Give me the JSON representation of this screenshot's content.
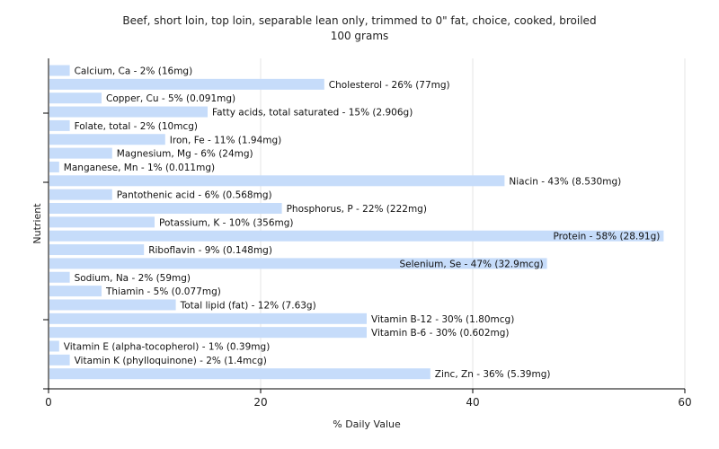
{
  "chart_data": {
    "type": "bar",
    "orientation": "horizontal",
    "title": "Beef, short loin, top loin, separable lean only, trimmed to 0\" fat, choice, cooked, broiled",
    "subtitle": "100 grams",
    "xlabel": "% Daily Value",
    "ylabel": "Nutrient",
    "xlim": [
      0,
      60
    ],
    "xticks": [
      0,
      20,
      40,
      60
    ],
    "grid": true,
    "bar_color": "#c6dcfa",
    "categories": [
      "Calcium, Ca",
      "Cholesterol",
      "Copper, Cu",
      "Fatty acids, total saturated",
      "Folate, total",
      "Iron, Fe",
      "Magnesium, Mg",
      "Manganese, Mn",
      "Niacin",
      "Pantothenic acid",
      "Phosphorus, P",
      "Potassium, K",
      "Protein",
      "Riboflavin",
      "Selenium, Se",
      "Sodium, Na",
      "Thiamin",
      "Total lipid (fat)",
      "Vitamin B-12",
      "Vitamin B-6",
      "Vitamin E (alpha-tocopherol)",
      "Vitamin K (phylloquinone)",
      "Zinc, Zn"
    ],
    "values": [
      2,
      26,
      5,
      15,
      2,
      11,
      6,
      1,
      43,
      6,
      22,
      10,
      58,
      9,
      47,
      2,
      5,
      12,
      30,
      30,
      1,
      2,
      36
    ],
    "labels": [
      "Calcium, Ca - 2% (16mg)",
      "Cholesterol - 26% (77mg)",
      "Copper, Cu - 5% (0.091mg)",
      "Fatty acids, total saturated - 15% (2.906g)",
      "Folate, total - 2% (10mcg)",
      "Iron, Fe - 11% (1.94mg)",
      "Magnesium, Mg - 6% (24mg)",
      "Manganese, Mn - 1% (0.011mg)",
      "Niacin - 43% (8.530mg)",
      "Pantothenic acid - 6% (0.568mg)",
      "Phosphorus, P - 22% (222mg)",
      "Potassium, K - 10% (356mg)",
      "Protein - 58% (28.91g)",
      "Riboflavin - 9% (0.148mg)",
      "Selenium, Se - 47% (32.9mcg)",
      "Sodium, Na - 2% (59mg)",
      "Thiamin - 5% (0.077mg)",
      "Total lipid (fat) - 12% (7.63g)",
      "Vitamin B-12 - 30% (1.80mcg)",
      "Vitamin B-6 - 30% (0.602mg)",
      "Vitamin E (alpha-tocopherol) - 1% (0.39mg)",
      "Vitamin K (phylloquinone) - 2% (1.4mcg)",
      "Zinc, Zn - 36% (5.39mg)"
    ]
  }
}
